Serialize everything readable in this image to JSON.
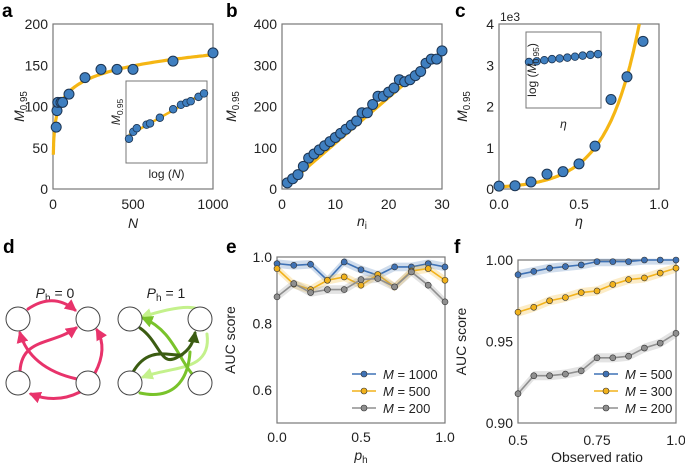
{
  "colors": {
    "marker_fill": "#3f7fc0",
    "marker_stroke": "#1c3553",
    "fit_line": "#f5b614",
    "blue": "#3f72b5",
    "orange": "#f2b21b",
    "gray": "#8f8f8f",
    "pink": "#e8336b",
    "dark_green": "#3b5c12",
    "mid_green": "#79c32b",
    "light_green": "#c4f18c"
  },
  "diagram": {
    "panel_label": "d",
    "left_title": {
      "main": "P",
      "sub": "h",
      "rest": " = 0"
    },
    "right_title": {
      "main": "P",
      "sub": "h",
      "rest": " = 1"
    }
  },
  "chart_data": [
    {
      "panel_label": "a",
      "type": "scatter",
      "xlabel": {
        "main": "N",
        "sub": ""
      },
      "ylabel": {
        "main": "M",
        "sub": "0.95"
      },
      "xlim": [
        0,
        1000
      ],
      "ylim": [
        0,
        200
      ],
      "xticks": [
        "0",
        "500",
        "1000"
      ],
      "yticks": [
        "0",
        "50",
        "100",
        "150",
        "200"
      ],
      "fit": "logarithmic",
      "x": [
        20,
        25,
        30,
        50,
        60,
        100,
        200,
        300,
        400,
        500,
        750,
        1000
      ],
      "y": [
        75,
        95,
        105,
        105,
        105,
        115,
        135,
        145,
        145,
        145,
        155,
        165
      ],
      "inset": {
        "xlabel": {
          "pre": "log (",
          "main": "N",
          "sub": "",
          "post": ")"
        },
        "ylabel": {
          "pre": "",
          "main": "M",
          "sub": "0.95",
          "post": ""
        },
        "xscale": "log",
        "yscale": "log"
      }
    },
    {
      "panel_label": "b",
      "type": "scatter",
      "xlabel": {
        "main": "n",
        "sub": "i"
      },
      "ylabel": {
        "main": "M",
        "sub": "0.95"
      },
      "xlim": [
        0,
        30
      ],
      "ylim": [
        0,
        400
      ],
      "xticks": [
        "0",
        "10",
        "20",
        "30"
      ],
      "yticks": [
        "0",
        "100",
        "200",
        "300",
        "400"
      ],
      "fit": "linear",
      "x": [
        1,
        2,
        3,
        4,
        5,
        6,
        7,
        8,
        9,
        10,
        11,
        12,
        13,
        14,
        15,
        16,
        17,
        18,
        19,
        20,
        21,
        22,
        23,
        24,
        25,
        26,
        27,
        28,
        29,
        30
      ],
      "y": [
        15,
        25,
        35,
        55,
        75,
        85,
        95,
        105,
        115,
        125,
        135,
        145,
        155,
        165,
        185,
        185,
        205,
        225,
        225,
        235,
        245,
        265,
        260,
        265,
        275,
        285,
        305,
        315,
        315,
        335
      ]
    },
    {
      "panel_label": "c",
      "type": "scatter",
      "xlabel": {
        "main": "η",
        "sub": ""
      },
      "ylabel": {
        "main": "M",
        "sub": "0.95"
      },
      "y_multiplier": "1e3",
      "xlim": [
        0,
        1
      ],
      "ylim": [
        0,
        4
      ],
      "xticks": [
        "0.0",
        "0.5",
        "1.0"
      ],
      "yticks": [
        "0",
        "1",
        "2",
        "3",
        "4"
      ],
      "fit": "exponential",
      "x": [
        0,
        0.1,
        0.2,
        0.3,
        0.4,
        0.5,
        0.6,
        0.7,
        0.8,
        0.9
      ],
      "y": [
        0.07,
        0.08,
        0.17,
        0.36,
        0.42,
        0.61,
        1.04,
        2.17,
        2.72,
        3.58
      ],
      "inset": {
        "xlabel": {
          "pre": "",
          "main": "η",
          "sub": "",
          "post": ""
        },
        "ylabel": {
          "pre": "log (",
          "main": "M",
          "sub": "0.95",
          "post": ")"
        },
        "xscale": "linear",
        "yscale": "log"
      }
    },
    {
      "panel_label": "e",
      "type": "line",
      "xlabel": {
        "main": "p",
        "sub": "h"
      },
      "ylabel": {
        "main": "AUC score",
        "sub": ""
      },
      "xlim": [
        0,
        1
      ],
      "ylim": [
        0.5,
        1.0
      ],
      "xticks": [
        "0.0",
        "0.5",
        "1.0"
      ],
      "yticks": [
        "0.6",
        "0.8",
        "1.0"
      ],
      "legend": "bottom-right",
      "x": [
        0,
        0.1,
        0.2,
        0.3,
        0.4,
        0.5,
        0.6,
        0.7,
        0.8,
        0.9,
        1.0
      ],
      "series": [
        {
          "name": "M = 1000",
          "color": "#3f72b5",
          "values": [
            0.98,
            0.975,
            0.978,
            0.93,
            0.985,
            0.962,
            0.945,
            0.97,
            0.97,
            0.98,
            0.97
          ]
        },
        {
          "name": "M = 500",
          "color": "#f2b21b",
          "values": [
            0.965,
            0.918,
            0.902,
            0.93,
            0.94,
            0.915,
            0.947,
            0.91,
            0.958,
            0.965,
            0.93
          ]
        },
        {
          "name": "M = 200",
          "color": "#8f8f8f",
          "values": [
            0.88,
            0.92,
            0.893,
            0.902,
            0.902,
            0.932,
            0.935,
            0.91,
            0.955,
            0.915,
            0.865
          ]
        }
      ]
    },
    {
      "panel_label": "f",
      "type": "line",
      "xlabel": {
        "main": "Observed ratio",
        "sub": ""
      },
      "ylabel": {
        "main": "AUC score",
        "sub": ""
      },
      "xlim": [
        0.5,
        1.0
      ],
      "ylim": [
        0.9,
        1.0
      ],
      "xticks": [
        "0.5",
        "0.75",
        "1.0"
      ],
      "yticks": [
        "0.90",
        "0.95",
        "1.00"
      ],
      "legend": "bottom-right",
      "x": [
        0.5,
        0.55,
        0.6,
        0.65,
        0.7,
        0.75,
        0.8,
        0.85,
        0.9,
        0.95,
        1.0
      ],
      "series": [
        {
          "name": "M = 500",
          "color": "#3f72b5",
          "values": [
            0.991,
            0.993,
            0.995,
            0.996,
            0.997,
            0.999,
            0.999,
            0.999,
            1.0,
            1.0,
            1.0
          ]
        },
        {
          "name": "M = 300",
          "color": "#f2b21b",
          "values": [
            0.968,
            0.971,
            0.975,
            0.977,
            0.98,
            0.981,
            0.985,
            0.988,
            0.989,
            0.992,
            0.995
          ]
        },
        {
          "name": "M = 200",
          "color": "#8f8f8f",
          "values": [
            0.918,
            0.929,
            0.929,
            0.93,
            0.932,
            0.94,
            0.94,
            0.941,
            0.946,
            0.949,
            0.955
          ]
        }
      ]
    }
  ]
}
